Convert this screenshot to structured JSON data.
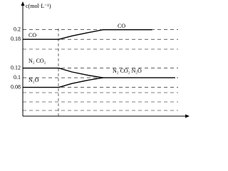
{
  "chart_data": {
    "type": "line",
    "y_label": "c(mol·L⁻¹)",
    "ylim": [
      0.02,
      0.25
    ],
    "yticks": [
      0.08,
      0.1,
      0.12,
      0.18,
      0.2
    ],
    "xlim": [
      0,
      10
    ],
    "grid": true,
    "series": [
      {
        "name": "CO",
        "color": "#000000",
        "x": [
          0,
          2.2,
          3,
          4,
          4.9,
          7.9
        ],
        "values": [
          0.18,
          0.18,
          0.187,
          0.194,
          0.2,
          0.2
        ]
      },
      {
        "name": "N₂  CO₂",
        "color": "#000000",
        "x": [
          0,
          2.2,
          3,
          4,
          4.9,
          9.3
        ],
        "values": [
          0.12,
          0.12,
          0.112,
          0.105,
          0.1,
          0.1
        ]
      },
      {
        "name": "N₂O",
        "color": "#000000",
        "x": [
          0,
          2.2,
          3,
          4,
          4.9
        ],
        "values": [
          0.08,
          0.08,
          0.088,
          0.095,
          0.1
        ]
      }
    ],
    "annotations": [
      "CO",
      "N₂  CO₂  N₂O"
    ]
  }
}
